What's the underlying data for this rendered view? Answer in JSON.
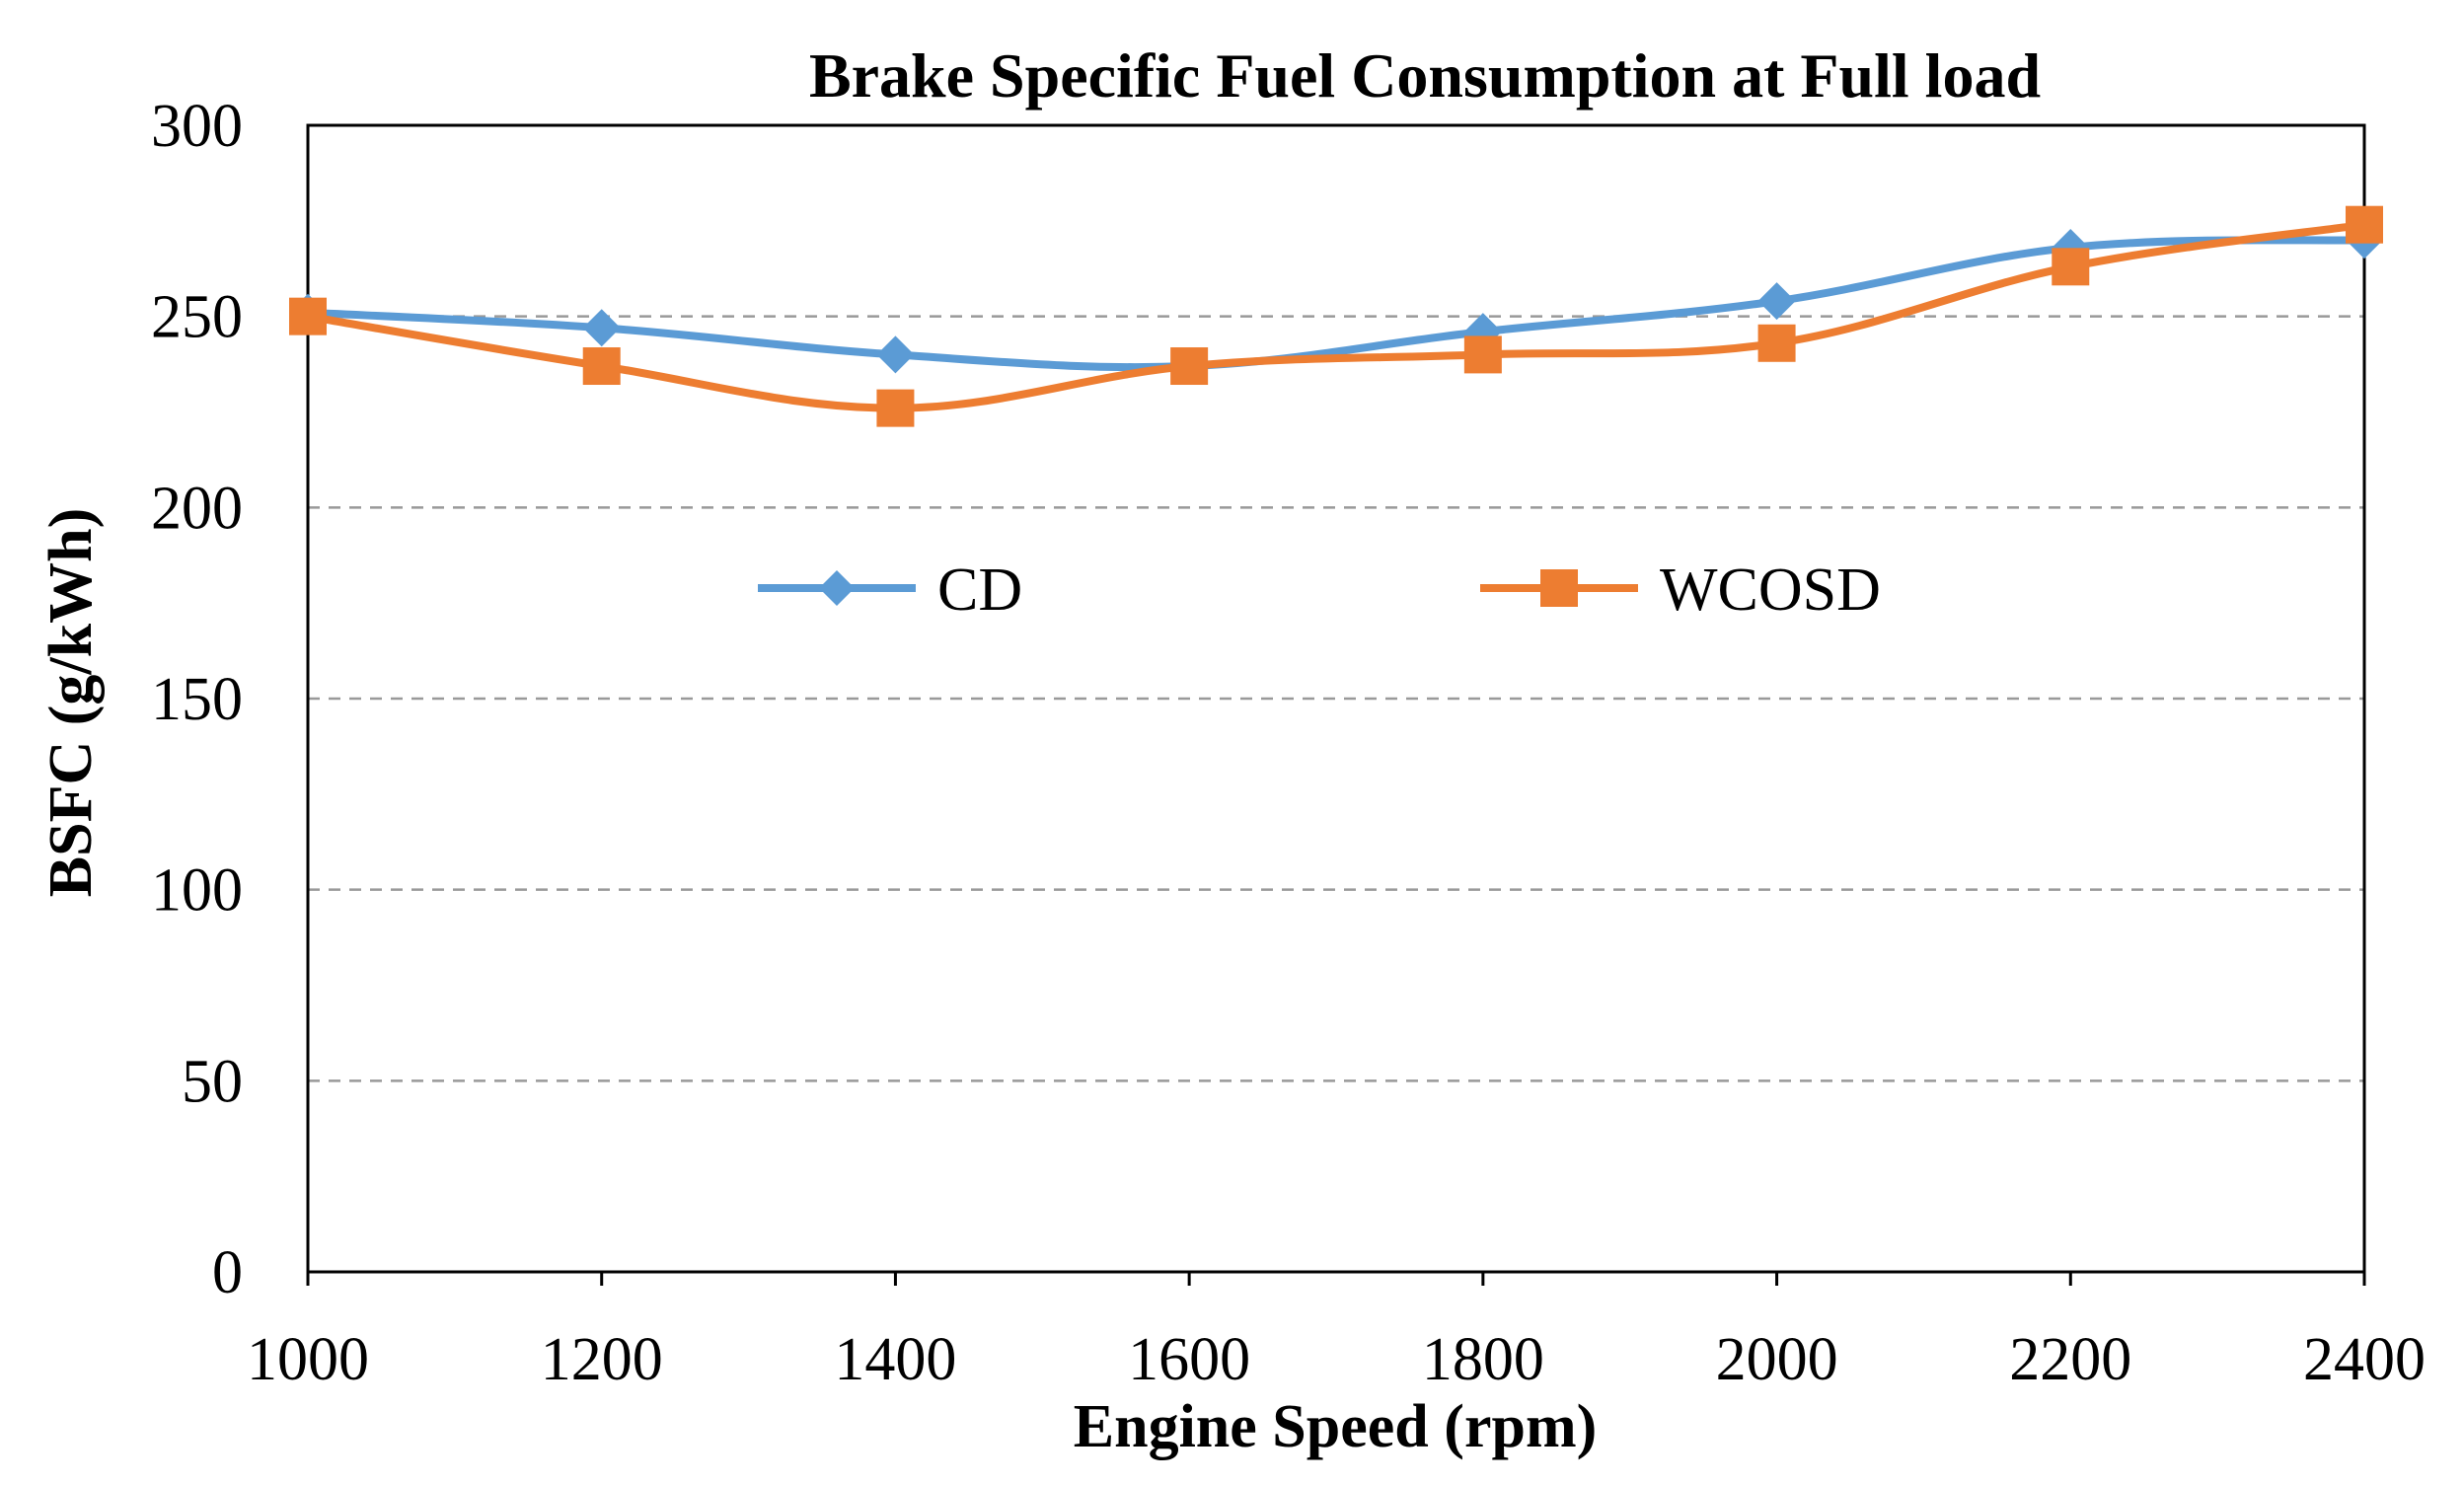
{
  "chart_data": {
    "type": "line",
    "title": "Brake Specific Fuel Consumption at Full load",
    "xlabel": "Engine Speed (rpm)",
    "ylabel": "BSFC (g/kWh)",
    "x": [
      1000,
      1200,
      1400,
      1600,
      1800,
      2000,
      2200,
      2400
    ],
    "xlim": [
      1000,
      2400
    ],
    "ylim": [
      0,
      300
    ],
    "xticks": [
      "1000",
      "1200",
      "1400",
      "1600",
      "1800",
      "2000",
      "2200",
      "2400"
    ],
    "yticks": [
      "0",
      "50",
      "100",
      "150",
      "200",
      "250",
      "300"
    ],
    "grid": "horizontal dashed",
    "legend_position": "upper-middle",
    "series": [
      {
        "name": "CD",
        "marker": "diamond",
        "color": "#5B9BD5",
        "values": [
          251,
          247,
          240,
          237,
          246,
          254,
          268,
          270
        ]
      },
      {
        "name": "WCOSD",
        "marker": "square",
        "color": "#ED7D31",
        "values": [
          250,
          237,
          226,
          237,
          240,
          243,
          263,
          274
        ]
      }
    ]
  }
}
